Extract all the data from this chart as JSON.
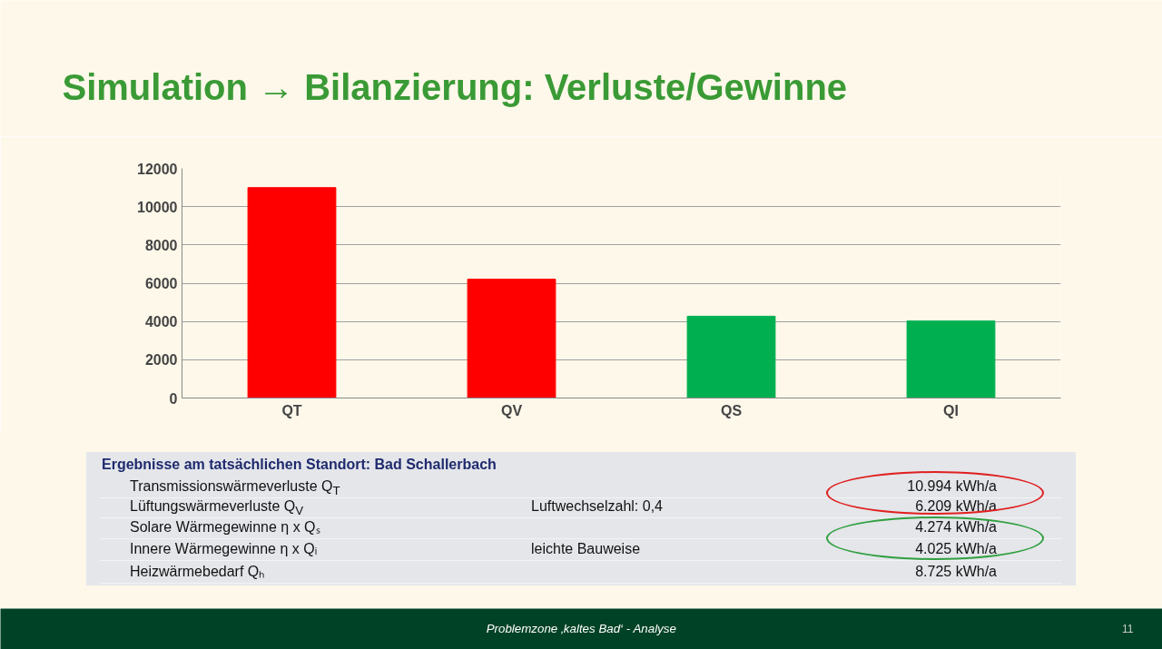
{
  "chart_data": {
    "type": "bar",
    "title": "Simulation → Bilanzierung: Verluste/Gewinne",
    "categories": [
      "QT",
      "QV",
      "QS",
      "QI"
    ],
    "values": [
      10994,
      6209,
      4274,
      4025
    ],
    "colors": [
      "#ff0000",
      "#ff0000",
      "#00b050",
      "#00b050"
    ],
    "ylim": [
      0,
      12000
    ],
    "yticks": [
      0,
      2000,
      4000,
      6000,
      8000,
      10000,
      12000
    ],
    "grid": "y",
    "annotations": [
      "Ergebnisse am tatsächlichen Standort: Bad Schallerbach",
      "Transmissionswärmeverluste Q$_{T}$",
      "Lüftungswärmeverluste Q$_{V}$",
      "Solare Wärmegewinne  η x Qₛ",
      "Innere Wärmegewinne  η x Qᵢ",
      "10.994  kWh/a",
      "6.209  kWh/a",
      "4.274  kWh/a",
      "4.025  kWh/a",
      "Luftwechselzahl: 0,4",
      "leichte Bauweise",
      "Heizwärmebedarf Qₕ",
      "8.725  kWh/a",
      "Problemzone ‚kaltes Bad‘ - Analyse",
      "11"
    ]
  }
}
